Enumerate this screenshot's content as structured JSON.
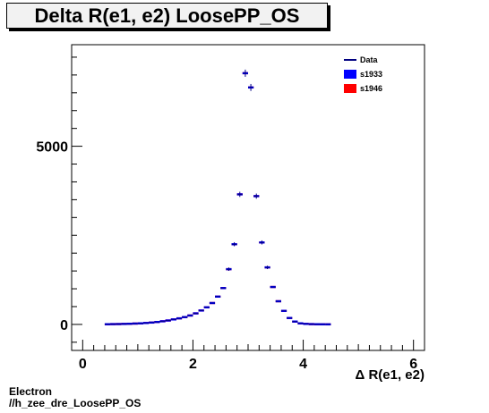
{
  "header": {
    "title": "Delta R(e1, e2) LoosePP_OS"
  },
  "footer": {
    "line1": "Electron",
    "line2": "//h_zee_dre_LoosePP_OS"
  },
  "chart_data": {
    "type": "scatter",
    "title": "Delta R(e1, e2) LoosePP_OS",
    "xlabel": "Δ R(e1, e2)",
    "ylabel": "",
    "xlim": [
      -0.2,
      6.2
    ],
    "ylim": [
      -730,
      7850
    ],
    "x_ticks": [
      0,
      2,
      4,
      6
    ],
    "y_ticks": [
      0,
      5000
    ],
    "x_tick_labels": [
      "0",
      "2",
      "4",
      "6"
    ],
    "y_tick_labels": [
      "0",
      "5000"
    ],
    "bin_width": 0.1,
    "legend": {
      "placement": "top-right",
      "entries": [
        {
          "label": "Data",
          "color": "#000080",
          "style": "line"
        },
        {
          "label": "s1933",
          "color": "#0000ff",
          "style": "box"
        },
        {
          "label": "s1946",
          "color": "#ff0000",
          "style": "box"
        }
      ]
    },
    "x": [
      0.45,
      0.55,
      0.65,
      0.75,
      0.85,
      0.95,
      1.05,
      1.15,
      1.25,
      1.35,
      1.45,
      1.55,
      1.65,
      1.75,
      1.85,
      1.95,
      2.05,
      2.15,
      2.25,
      2.35,
      2.45,
      2.55,
      2.65,
      2.75,
      2.85,
      2.95,
      3.05,
      3.15,
      3.25,
      3.35,
      3.45,
      3.55,
      3.65,
      3.75,
      3.85,
      3.95,
      4.05,
      4.15,
      4.25,
      4.35,
      4.45
    ],
    "series": [
      {
        "name": "s1933",
        "values": [
          5,
          8,
          10,
          14,
          18,
          24,
          30,
          40,
          52,
          68,
          88,
          110,
          140,
          170,
          205,
          250,
          310,
          390,
          480,
          600,
          780,
          1020,
          1550,
          2250,
          3650,
          7050,
          6650,
          3600,
          2300,
          1600,
          1050,
          650,
          380,
          180,
          80,
          30,
          15,
          8,
          5,
          3,
          2
        ]
      },
      {
        "name": "s1946",
        "values": [
          5,
          8,
          10,
          14,
          18,
          24,
          30,
          40,
          52,
          68,
          88,
          110,
          140,
          170,
          205,
          250,
          310,
          390,
          480,
          600,
          780,
          1020,
          1550,
          2250,
          3650,
          7050,
          6650,
          3600,
          2300,
          1600,
          1050,
          650,
          380,
          180,
          80,
          30,
          15,
          8,
          5,
          3,
          2
        ]
      }
    ]
  }
}
